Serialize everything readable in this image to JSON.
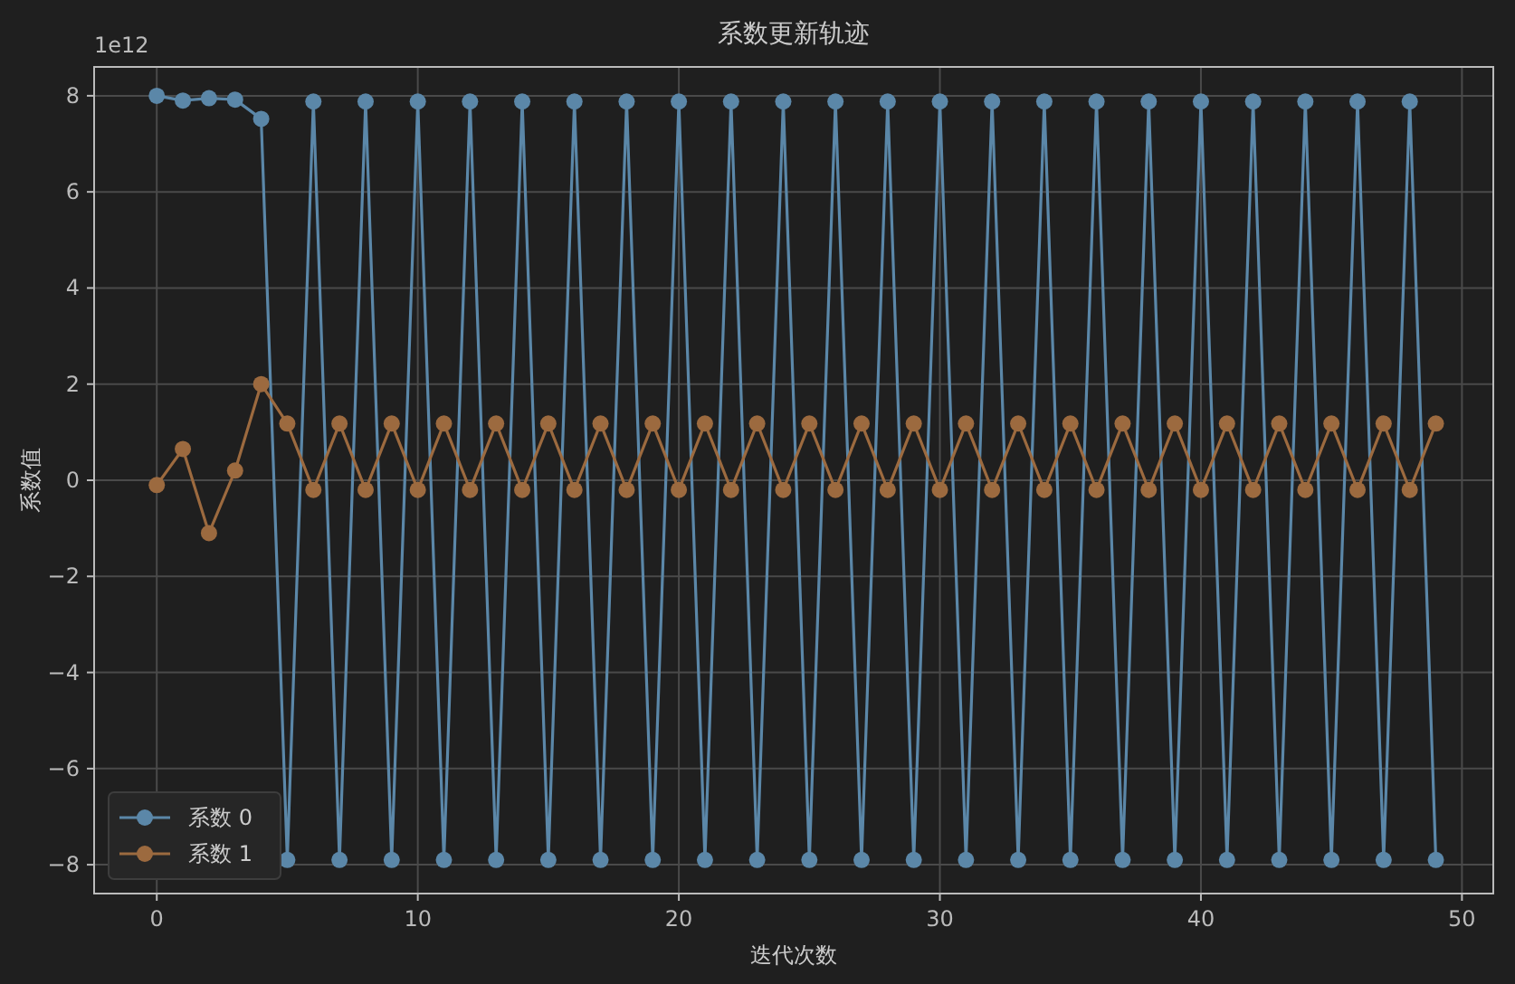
{
  "chart_data": {
    "type": "line",
    "title": "系数更新轨迹",
    "xlabel": "迭代次数",
    "ylabel": "系数值",
    "annotations": [
      "1e12"
    ],
    "x": [
      0,
      1,
      2,
      3,
      4,
      5,
      6,
      7,
      8,
      9,
      10,
      11,
      12,
      13,
      14,
      15,
      16,
      17,
      18,
      19,
      20,
      21,
      22,
      23,
      24,
      25,
      26,
      27,
      28,
      29,
      30,
      31,
      32,
      33,
      34,
      35,
      36,
      37,
      38,
      39,
      40,
      41,
      42,
      43,
      44,
      45,
      46,
      47,
      48,
      49
    ],
    "series": [
      {
        "name": "系数 0",
        "color": "#5b87a8",
        "values": [
          8.0,
          7.9,
          7.95,
          7.92,
          7.52,
          -7.9,
          7.88,
          -7.9,
          7.88,
          -7.9,
          7.88,
          -7.9,
          7.88,
          -7.9,
          7.88,
          -7.9,
          7.88,
          -7.9,
          7.88,
          -7.9,
          7.88,
          -7.9,
          7.88,
          -7.9,
          7.88,
          -7.9,
          7.88,
          -7.9,
          7.88,
          -7.9,
          7.88,
          -7.9,
          7.88,
          -7.9,
          7.88,
          -7.9,
          7.88,
          -7.9,
          7.88,
          -7.9,
          7.88,
          -7.9,
          7.88,
          -7.9,
          7.88,
          -7.9,
          7.88,
          -7.9,
          7.88,
          -7.9
        ]
      },
      {
        "name": "系数 1",
        "color": "#9c6a3f",
        "values": [
          -0.1,
          0.65,
          -1.1,
          0.2,
          2.0,
          1.18,
          -0.2,
          1.18,
          -0.2,
          1.18,
          -0.2,
          1.18,
          -0.2,
          1.18,
          -0.2,
          1.18,
          -0.2,
          1.18,
          -0.2,
          1.18,
          -0.2,
          1.18,
          -0.2,
          1.18,
          -0.2,
          1.18,
          -0.2,
          1.18,
          -0.2,
          1.18,
          -0.2,
          1.18,
          -0.2,
          1.18,
          -0.2,
          1.18,
          -0.2,
          1.18,
          -0.2,
          1.18,
          -0.2,
          1.18,
          -0.2,
          1.18,
          -0.2,
          1.18,
          -0.2,
          1.18,
          -0.2,
          1.18
        ]
      }
    ],
    "xlim": [
      -2.4,
      51.2
    ],
    "xticks": [
      0,
      10,
      20,
      30,
      40,
      50
    ],
    "ylim": [
      -8.6,
      8.6
    ],
    "yticks": [
      -8,
      -6,
      -4,
      -2,
      0,
      2,
      4,
      6,
      8
    ],
    "grid": true,
    "legend": "bottom left",
    "marker": "circle",
    "line_style": "solid"
  }
}
